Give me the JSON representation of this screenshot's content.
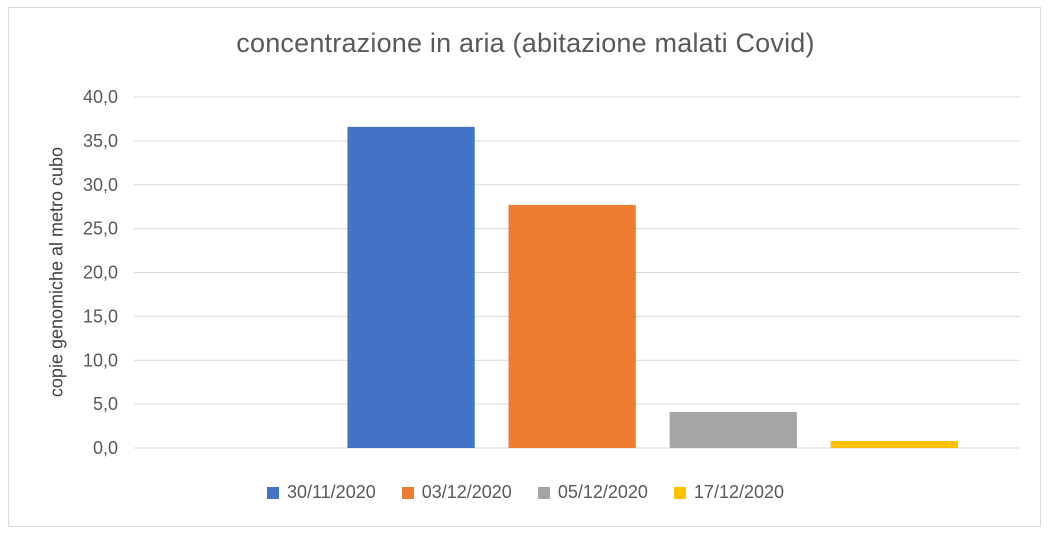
{
  "chart_data": {
    "type": "bar",
    "title": "concentrazione  in aria (abitazione malati Covid)",
    "xlabel": "",
    "ylabel": "copie genomiche al metro cubo",
    "ylim": [
      0,
      40
    ],
    "yticks": [
      "0,0",
      "5,0",
      "10,0",
      "15,0",
      "20,0",
      "25,0",
      "30,0",
      "35,0",
      "40,0"
    ],
    "categories": [
      "30/11/2020",
      "03/12/2020",
      "05/12/2020",
      "17/12/2020"
    ],
    "values": [
      36.6,
      27.7,
      4.1,
      0.8
    ],
    "colors": [
      "#4472C4",
      "#ED7D31",
      "#A5A5A5",
      "#FFC000"
    ],
    "grid": true,
    "legend_position": "bottom"
  }
}
